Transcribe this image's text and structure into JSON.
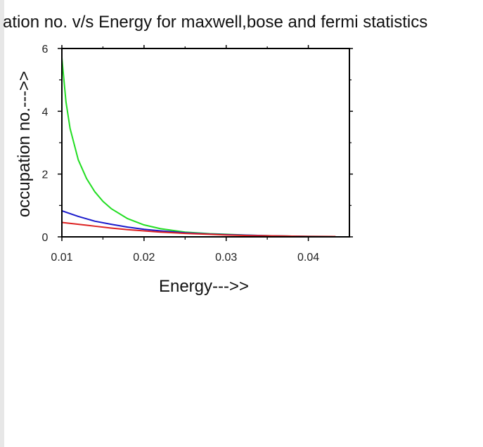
{
  "chart_data": {
    "type": "line",
    "title": "ation no. v/s Energy for maxwell,bose and fermi statistics",
    "xlabel": "Energy--->>",
    "ylabel": "occupation no.--->>",
    "xlim": [
      0.01,
      0.045
    ],
    "ylim": [
      0,
      6
    ],
    "xticks": [
      {
        "value": 0.01,
        "label": "0.01"
      },
      {
        "value": 0.02,
        "label": "0.02"
      },
      {
        "value": 0.03,
        "label": "0.03"
      },
      {
        "value": 0.04,
        "label": "0.04"
      }
    ],
    "yticks": [
      {
        "value": 0,
        "label": "0"
      },
      {
        "value": 2,
        "label": "2"
      },
      {
        "value": 4,
        "label": "4"
      },
      {
        "value": 6,
        "label": "6"
      }
    ],
    "grid": false,
    "legend": "none",
    "series": [
      {
        "color": "#22dd22",
        "x": [
          0.01,
          0.0105,
          0.011,
          0.012,
          0.013,
          0.014,
          0.015,
          0.016,
          0.018,
          0.02,
          0.022,
          0.025,
          0.028,
          0.03,
          0.033,
          0.036,
          0.04,
          0.0433
        ],
        "y": [
          5.7,
          4.3,
          3.45,
          2.45,
          1.86,
          1.44,
          1.13,
          0.9,
          0.58,
          0.38,
          0.26,
          0.15,
          0.1,
          0.08,
          0.05,
          0.03,
          0.015,
          0.01
        ]
      },
      {
        "color": "#1a1acc",
        "x": [
          0.01,
          0.012,
          0.014,
          0.016,
          0.018,
          0.02,
          0.022,
          0.025,
          0.028,
          0.03,
          0.033,
          0.036,
          0.04,
          0.0433
        ],
        "y": [
          0.83,
          0.65,
          0.5,
          0.4,
          0.31,
          0.24,
          0.19,
          0.13,
          0.09,
          0.07,
          0.05,
          0.03,
          0.015,
          0.01
        ]
      },
      {
        "color": "#dd2222",
        "x": [
          0.01,
          0.012,
          0.014,
          0.016,
          0.018,
          0.02,
          0.022,
          0.025,
          0.028,
          0.03,
          0.033,
          0.036,
          0.04,
          0.0433
        ],
        "y": [
          0.46,
          0.4,
          0.34,
          0.28,
          0.23,
          0.19,
          0.15,
          0.11,
          0.08,
          0.06,
          0.04,
          0.03,
          0.015,
          0.01
        ]
      }
    ]
  }
}
